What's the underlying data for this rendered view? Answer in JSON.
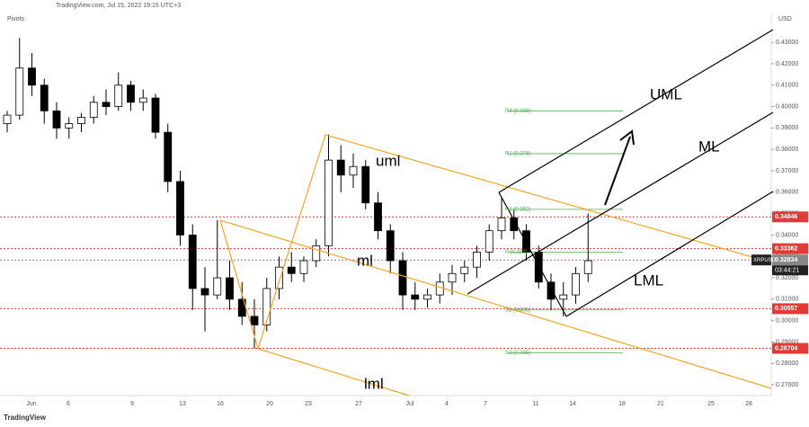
{
  "header": {
    "source": "TradingView.com, Jul 15, 2022 19:15 UTC+3",
    "indicator": "Pivots",
    "currency": "USD",
    "logo": "TradingView"
  },
  "chart_data": {
    "type": "candlestick",
    "symbol": "XRPUSD",
    "countdown": "03:44:21",
    "up_color": "#ffffff",
    "down_color": "#000000",
    "open": [
      0.392,
      0.396,
      0.418,
      0.41,
      0.398,
      0.39,
      0.392,
      0.395,
      0.402,
      0.4,
      0.41,
      0.402,
      0.404,
      0.388,
      0.365,
      0.34,
      0.315,
      0.312,
      0.32,
      0.31,
      0.302,
      0.298,
      0.315,
      0.325,
      0.322,
      0.328,
      0.335,
      0.375,
      0.368,
      0.372,
      0.355,
      0.342,
      0.328,
      0.312,
      0.31,
      0.312,
      0.318,
      0.322,
      0.325,
      0.332,
      0.342,
      0.348,
      0.342,
      0.332,
      0.318,
      0.31,
      0.312,
      0.322
    ],
    "high": [
      0.398,
      0.432,
      0.425,
      0.413,
      0.402,
      0.395,
      0.397,
      0.405,
      0.408,
      0.416,
      0.412,
      0.408,
      0.406,
      0.392,
      0.37,
      0.345,
      0.325,
      0.347,
      0.328,
      0.318,
      0.31,
      0.32,
      0.33,
      0.332,
      0.33,
      0.338,
      0.387,
      0.382,
      0.378,
      0.375,
      0.36,
      0.345,
      0.332,
      0.318,
      0.315,
      0.322,
      0.326,
      0.328,
      0.335,
      0.345,
      0.358,
      0.352,
      0.345,
      0.335,
      0.322,
      0.318,
      0.325,
      0.35
    ],
    "low": [
      0.388,
      0.394,
      0.405,
      0.392,
      0.385,
      0.385,
      0.388,
      0.392,
      0.396,
      0.398,
      0.398,
      0.398,
      0.385,
      0.36,
      0.335,
      0.305,
      0.295,
      0.31,
      0.305,
      0.298,
      0.287,
      0.295,
      0.31,
      0.318,
      0.318,
      0.325,
      0.33,
      0.36,
      0.362,
      0.352,
      0.338,
      0.322,
      0.305,
      0.305,
      0.306,
      0.308,
      0.312,
      0.318,
      0.32,
      0.328,
      0.338,
      0.338,
      0.328,
      0.315,
      0.305,
      0.302,
      0.308,
      0.318
    ],
    "close": [
      0.396,
      0.418,
      0.41,
      0.398,
      0.39,
      0.392,
      0.395,
      0.402,
      0.4,
      0.41,
      0.402,
      0.404,
      0.388,
      0.365,
      0.34,
      0.315,
      0.312,
      0.32,
      0.31,
      0.302,
      0.298,
      0.315,
      0.325,
      0.322,
      0.328,
      0.335,
      0.375,
      0.368,
      0.372,
      0.355,
      0.342,
      0.328,
      0.312,
      0.31,
      0.312,
      0.318,
      0.322,
      0.325,
      0.332,
      0.342,
      0.348,
      0.342,
      0.332,
      0.318,
      0.31,
      0.312,
      0.322,
      0.328
    ],
    "x_labels": [
      "Jun",
      "6",
      "9",
      "13",
      "16",
      "20",
      "23",
      "27",
      "Jul",
      "4",
      "7",
      "11",
      "14",
      "18",
      "21",
      "25",
      "28"
    ],
    "ylim": [
      0.265,
      0.4435
    ],
    "yticks": [
      {
        "value": 0.27,
        "label": "0.27000"
      },
      {
        "value": 0.28,
        "label": "0.28000"
      },
      {
        "value": 0.29,
        "label": "0.29000"
      },
      {
        "value": 0.3,
        "label": "0.30000"
      },
      {
        "value": 0.31,
        "label": "0.31000"
      },
      {
        "value": 0.32,
        "label": "0.32000"
      },
      {
        "value": 0.33,
        "label": "0.33000"
      },
      {
        "value": 0.34,
        "label": "0.34000"
      },
      {
        "value": 0.35,
        "label": "0.35000"
      },
      {
        "value": 0.36,
        "label": "0.36000"
      },
      {
        "value": 0.37,
        "label": "0.37000"
      },
      {
        "value": 0.38,
        "label": "0.38000"
      },
      {
        "value": 0.39,
        "label": "0.39000"
      },
      {
        "value": 0.4,
        "label": "0.40000"
      },
      {
        "value": 0.41,
        "label": "0.41000"
      },
      {
        "value": 0.42,
        "label": "0.42000"
      },
      {
        "value": 0.43,
        "label": "0.43000"
      }
    ],
    "pivots": [
      {
        "label": "R3 (0.398)",
        "value": 0.398
      },
      {
        "label": "R2 (0.378)",
        "value": 0.378
      },
      {
        "label": "R1 (0.352)",
        "value": 0.352
      },
      {
        "label": "P (0.332)",
        "value": 0.332
      },
      {
        "label": "S1 (0.305)",
        "value": 0.305
      },
      {
        "label": "S2 (0.285)",
        "value": 0.285
      }
    ],
    "levels": [
      {
        "value": 0.34846,
        "label": "0.34846"
      },
      {
        "value": 0.33362,
        "label": "0.33362"
      },
      {
        "value": 0.30557,
        "label": "0.30557"
      },
      {
        "value": 0.28704,
        "label": "0.28704"
      }
    ],
    "last_price": {
      "value": 0.32834,
      "label": "0.32834"
    },
    "annotations": [
      "uml",
      "ml",
      "lml",
      "UML",
      "ML",
      "LML"
    ]
  }
}
